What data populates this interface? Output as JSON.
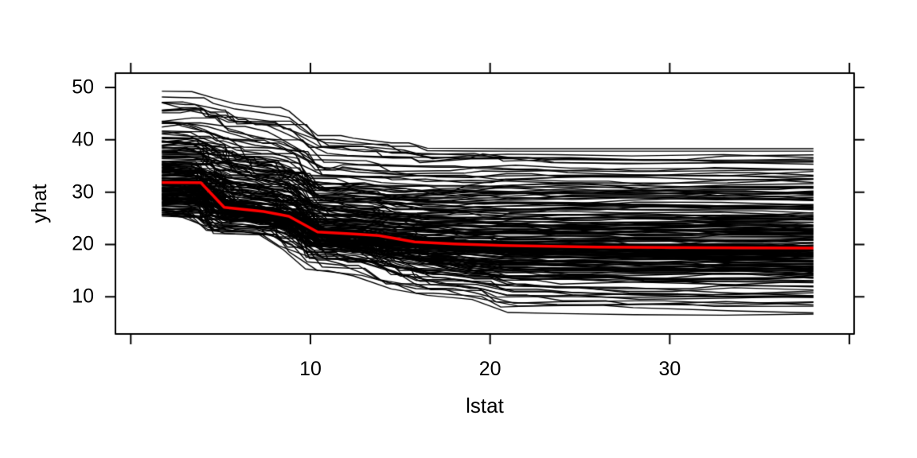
{
  "figure": {
    "background": "#FFFFFF",
    "frame_color": "#000000"
  },
  "chart_data": {
    "type": "line",
    "title": "",
    "xlabel": "lstat",
    "ylabel": "yhat",
    "x_axis": {
      "tick_values": [
        0,
        10,
        20,
        30,
        40
      ],
      "tick_labels": [
        "",
        "10",
        "20",
        "30",
        ""
      ],
      "range": [
        -0.85,
        40.2
      ]
    },
    "y_axis": {
      "tick_values": [
        10,
        20,
        30,
        40,
        50
      ],
      "tick_labels": [
        "10",
        "20",
        "30",
        "40",
        "50"
      ],
      "range": [
        2.9,
        52.7
      ]
    },
    "x_data_range": [
      1.73,
      38.0
    ],
    "y_data_range": [
      6.5,
      49.3
    ],
    "ensemble": {
      "n_lines": 200,
      "color": "#000000",
      "knots_x": [
        1.73,
        3.4,
        4.6,
        5.8,
        7.4,
        8.8,
        10.4,
        12.4,
        14.5,
        16.5,
        19.0,
        21.0,
        24.0,
        28.0,
        33.0,
        38.0
      ],
      "quantile_levels": [
        0,
        0.04,
        0.12,
        0.3,
        0.5,
        0.72,
        0.9,
        0.985,
        1
      ],
      "quantiles_y": [
        [
          25.4,
          26.3,
          27.7,
          29.9,
          31.8,
          34.8,
          40.5,
          47.2,
          49.3
        ],
        [
          25.2,
          26.2,
          27.6,
          29.8,
          31.8,
          34.7,
          40.4,
          47.0,
          49.2
        ],
        [
          22.1,
          23.5,
          25.2,
          27.5,
          29.3,
          33.0,
          38.8,
          46.0,
          48.0
        ],
        [
          22.0,
          23.2,
          24.8,
          26.5,
          27.3,
          31.8,
          37.3,
          45.0,
          46.9
        ],
        [
          21.9,
          22.9,
          24.3,
          25.8,
          26.5,
          30.8,
          36.5,
          44.2,
          46.2
        ],
        [
          18.6,
          21.2,
          23.2,
          24.8,
          25.5,
          29.8,
          35.5,
          43.2,
          45.5
        ],
        [
          15.0,
          17.6,
          19.6,
          21.5,
          22.5,
          26.8,
          32.2,
          39.4,
          40.8
        ],
        [
          14.0,
          17.0,
          19.2,
          21.0,
          22.0,
          26.2,
          31.8,
          39.0,
          40.3
        ],
        [
          11.5,
          14.6,
          17.2,
          20.0,
          21.0,
          25.4,
          31.0,
          38.2,
          39.4
        ],
        [
          10.3,
          13.1,
          15.9,
          19.2,
          20.4,
          25.0,
          31.0,
          37.5,
          38.4
        ],
        [
          9.5,
          12.3,
          15.1,
          18.7,
          20.0,
          24.8,
          31.2,
          37.4,
          38.35
        ],
        [
          7.0,
          11.1,
          14.4,
          18.2,
          19.8,
          24.7,
          31.3,
          37.4,
          38.3
        ],
        [
          6.8,
          10.6,
          14.1,
          18.0,
          19.6,
          24.7,
          31.3,
          37.4,
          38.3
        ],
        [
          6.6,
          10.3,
          13.9,
          17.9,
          19.5,
          24.7,
          31.3,
          37.4,
          38.3
        ],
        [
          6.5,
          10.2,
          13.9,
          17.9,
          19.5,
          24.7,
          31.3,
          37.4,
          38.3
        ],
        [
          6.7,
          10.3,
          13.9,
          17.9,
          19.4,
          24.7,
          31.3,
          37.4,
          38.3
        ]
      ]
    },
    "mean_line": {
      "color": "#FF0000",
      "x": [
        1.73,
        3.9,
        5.2,
        7.4,
        8.8,
        10.4,
        12.4,
        13.8,
        15.8,
        18.0,
        20.7,
        26.0,
        32.0,
        38.0
      ],
      "y": [
        31.85,
        31.8,
        27.1,
        26.3,
        25.4,
        22.4,
        22.0,
        21.7,
        20.5,
        20.1,
        19.8,
        19.5,
        19.4,
        19.3
      ]
    }
  }
}
